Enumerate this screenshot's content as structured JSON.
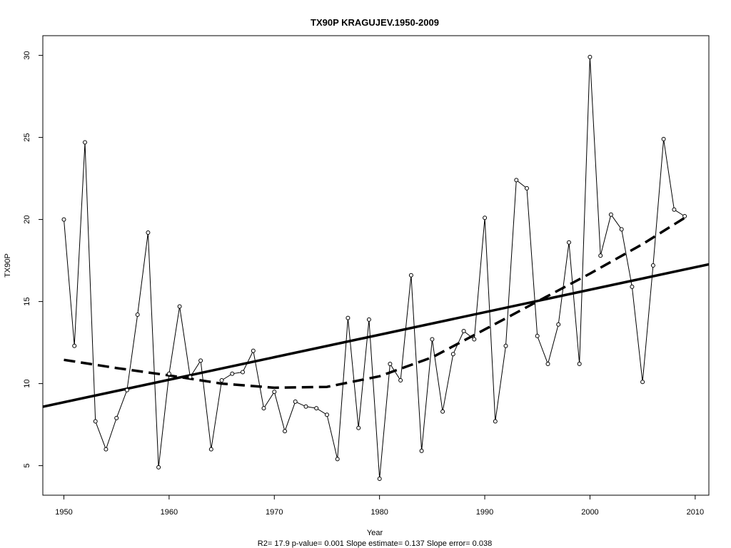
{
  "chart_data": {
    "type": "line",
    "title": "TX90P   KRAGUJEV.1950-2009",
    "xlabel": "Year",
    "ylabel": "TX90P",
    "footer": "R2= 17.9  p-value= 0.001  Slope estimate= 0.137  Slope error= 0.038",
    "xlim": [
      1948,
      2011.3
    ],
    "ylim": [
      3.2,
      31.2
    ],
    "x_ticks": [
      1950,
      1960,
      1970,
      1980,
      1990,
      2000,
      2010
    ],
    "y_ticks": [
      5,
      10,
      15,
      20,
      25,
      30
    ],
    "grid": false,
    "series": [
      {
        "style": "points-with-lines",
        "x": [
          1950,
          1951,
          1952,
          1953,
          1954,
          1955,
          1956,
          1957,
          1958,
          1959,
          1960,
          1961,
          1962,
          1963,
          1964,
          1965,
          1966,
          1967,
          1968,
          1969,
          1970,
          1971,
          1972,
          1973,
          1974,
          1975,
          1976,
          1977,
          1978,
          1979,
          1980,
          1981,
          1982,
          1983,
          1984,
          1985,
          1986,
          1987,
          1988,
          1989,
          1990,
          1991,
          1992,
          1993,
          1994,
          1995,
          1996,
          1997,
          1998,
          1999,
          2000,
          2001,
          2002,
          2003,
          2004,
          2005,
          2006,
          2007,
          2008,
          2009
        ],
        "y": [
          20.0,
          12.3,
          24.7,
          7.7,
          6.0,
          7.9,
          9.6,
          14.2,
          19.2,
          4.9,
          10.6,
          14.7,
          10.4,
          11.4,
          6.0,
          10.2,
          10.6,
          10.7,
          12.0,
          8.5,
          9.5,
          7.1,
          8.9,
          8.6,
          8.5,
          8.1,
          5.4,
          14.0,
          7.3,
          13.9,
          4.2,
          11.2,
          10.2,
          16.6,
          5.9,
          12.7,
          8.3,
          11.8,
          13.2,
          12.7,
          20.1,
          7.7,
          12.3,
          22.4,
          21.9,
          12.9,
          11.2,
          13.6,
          18.6,
          11.2,
          29.9,
          17.8,
          20.3,
          19.4,
          15.9,
          10.1,
          17.2,
          24.9,
          20.6,
          20.2
        ]
      },
      {
        "style": "solid-thick",
        "x": [
          1948,
          2011.3
        ],
        "y": [
          8.59,
          17.27
        ]
      },
      {
        "style": "dashed-thick",
        "x": [
          1950,
          1955,
          1960,
          1965,
          1970,
          1975,
          1980,
          1985,
          1990,
          1995,
          2000,
          2005,
          2009
        ],
        "y": [
          11.45,
          10.95,
          10.5,
          10.0,
          9.75,
          9.8,
          10.45,
          11.6,
          13.3,
          15.0,
          16.7,
          18.5,
          20.1
        ]
      }
    ]
  }
}
